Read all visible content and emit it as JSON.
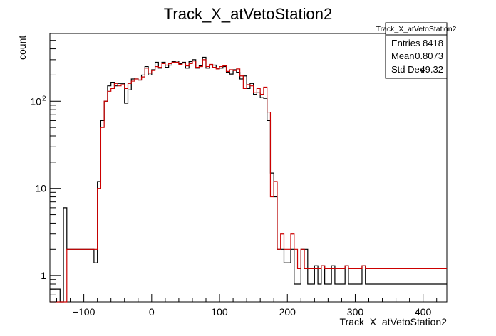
{
  "chart_data": {
    "type": "histogram",
    "title": "Track_X_atVetoStation2",
    "xlabel": "Track_X_atVetoStation2",
    "ylabel": "count",
    "log_y": true,
    "xlim": [
      -150,
      435
    ],
    "ylim": [
      0.5,
      600
    ],
    "x_ticks": [
      -100,
      0,
      100,
      200,
      300,
      400
    ],
    "x_tick_labels": [
      "−100",
      "0",
      "100",
      "200",
      "300",
      "400"
    ],
    "y_ticks": [
      {
        "value": 1,
        "label": "1"
      },
      {
        "value": 10,
        "label": "10"
      },
      {
        "value": 100,
        "label": "10",
        "exp": "2"
      }
    ],
    "bin_start": -150,
    "bin_width": 5,
    "series": [
      {
        "color": "#000000",
        "values": [
          0.7,
          0.7,
          0.7,
          0,
          6,
          2,
          2,
          2,
          2,
          2,
          2,
          2,
          2,
          1.4,
          12,
          60,
          100,
          150,
          165,
          150,
          160,
          160,
          95,
          135,
          180,
          185,
          175,
          200,
          250,
          200,
          230,
          280,
          240,
          280,
          245,
          260,
          285,
          290,
          270,
          280,
          240,
          285,
          300,
          240,
          255,
          320,
          240,
          260,
          260,
          240,
          240,
          250,
          215,
          205,
          230,
          215,
          180,
          195,
          140,
          160,
          120,
          125,
          110,
          108,
          60,
          15,
          8,
          2,
          2,
          1.4,
          1.4,
          2,
          0.8,
          0.8,
          2,
          2,
          0.8,
          0.8,
          1.3,
          0.8,
          1.3,
          0.8,
          0.8,
          1.3,
          0.8,
          0.8,
          0.8,
          1.3,
          0.8,
          0.8,
          0.8,
          0.8,
          1.3,
          0.8,
          0.8,
          0.8,
          0.8,
          0.8,
          0.8,
          0.8,
          0.8,
          0.8,
          0.8,
          0.8,
          0.8,
          0.8,
          0.8,
          0.8,
          0.8,
          0.8,
          0.8,
          0.8,
          0.8,
          0.8,
          0.8,
          0.8,
          0.8
        ]
      },
      {
        "color": "#cc0000",
        "values": [
          0,
          0,
          0,
          0,
          0,
          2,
          2,
          2,
          2,
          2,
          2,
          2,
          2,
          2,
          10,
          50,
          100,
          130,
          140,
          160,
          150,
          155,
          140,
          160,
          170,
          180,
          175,
          190,
          240,
          210,
          225,
          250,
          245,
          270,
          260,
          270,
          280,
          280,
          265,
          275,
          255,
          270,
          290,
          245,
          250,
          300,
          250,
          265,
          245,
          235,
          250,
          255,
          220,
          230,
          225,
          235,
          195,
          140,
          155,
          150,
          125,
          140,
          120,
          145,
          75,
          8,
          12,
          2,
          3,
          2,
          2,
          3,
          2,
          1.2,
          2,
          1.2,
          1.2,
          1.2,
          1.2,
          1.2,
          1.3,
          1.2,
          1.2,
          1.2,
          1.2,
          1.2,
          1.2,
          1.3,
          1.2,
          1.2,
          1.2,
          1.2,
          1.3,
          1.2,
          1.2,
          1.2,
          1.2,
          1.2,
          1.2,
          1.2,
          1.2,
          1.2,
          1.2,
          1.2,
          1.2,
          1.2,
          1.2,
          1.2,
          1.2,
          1.2,
          1.2,
          1.2,
          1.2,
          1.2,
          1.2,
          1.2,
          1.2
        ]
      }
    ]
  },
  "stats_box": {
    "title": "Track_X_atVetoStation2",
    "rows": [
      {
        "label": "Entries",
        "value": "8418"
      },
      {
        "label": "Mean",
        "value": "−0.8073"
      },
      {
        "label": "Std Dev",
        "value": "49.32"
      }
    ]
  }
}
